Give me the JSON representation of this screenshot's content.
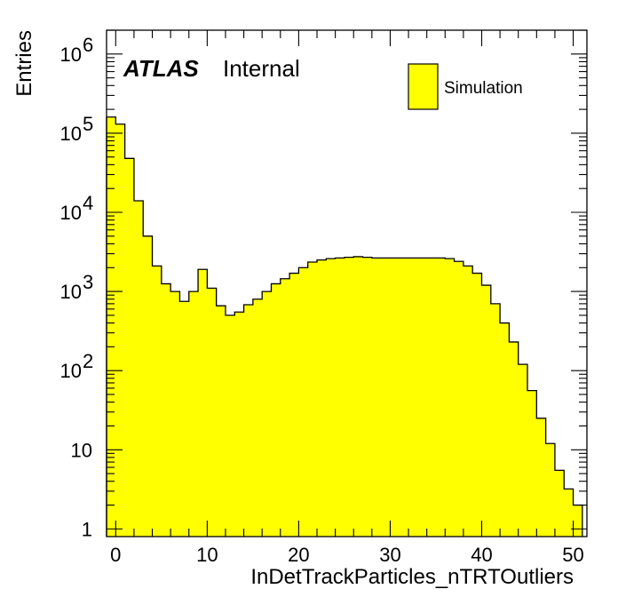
{
  "chart_data": {
    "type": "bar",
    "histogram": true,
    "xlabel": "InDetTrackParticles_nTRTOutliers",
    "ylabel": "Entries",
    "ylog": true,
    "xlim": [
      -1,
      51.5
    ],
    "ylim": [
      0.8,
      2000000
    ],
    "bin_edges_start": -1,
    "bin_width": 1,
    "x_ticks": [
      {
        "value": 0,
        "label": "0"
      },
      {
        "value": 10,
        "label": "10"
      },
      {
        "value": 20,
        "label": "20"
      },
      {
        "value": 30,
        "label": "30"
      },
      {
        "value": 40,
        "label": "40"
      },
      {
        "value": 50,
        "label": "50"
      }
    ],
    "y_ticks": [
      {
        "value": 1,
        "base": "1",
        "exp": ""
      },
      {
        "value": 10,
        "base": "10",
        "exp": ""
      },
      {
        "value": 100,
        "base": "10",
        "exp": "2"
      },
      {
        "value": 1000,
        "base": "10",
        "exp": "3"
      },
      {
        "value": 10000,
        "base": "10",
        "exp": "4"
      },
      {
        "value": 100000,
        "base": "10",
        "exp": "5"
      },
      {
        "value": 1000000,
        "base": "10",
        "exp": "6"
      }
    ],
    "series": [
      {
        "name": "Simulation",
        "color": "#ffff00",
        "edge_color": "#000000",
        "values": [
          160000,
          130000,
          48000,
          14000,
          5000,
          2100,
          1250,
          1000,
          750,
          1000,
          1900,
          1100,
          660,
          500,
          550,
          680,
          800,
          1000,
          1250,
          1450,
          1700,
          2000,
          2350,
          2500,
          2600,
          2650,
          2700,
          2750,
          2700,
          2650,
          2650,
          2650,
          2650,
          2650,
          2650,
          2650,
          2650,
          2600,
          2400,
          2100,
          1700,
          1200,
          700,
          400,
          230,
          120,
          56,
          25,
          12,
          5.5,
          3.2,
          2.0
        ]
      }
    ],
    "legend": {
      "position": "top-right",
      "entries": [
        "Simulation"
      ]
    },
    "grid": false
  },
  "labels": {
    "atlas": "ATLAS",
    "internal": "Internal"
  }
}
